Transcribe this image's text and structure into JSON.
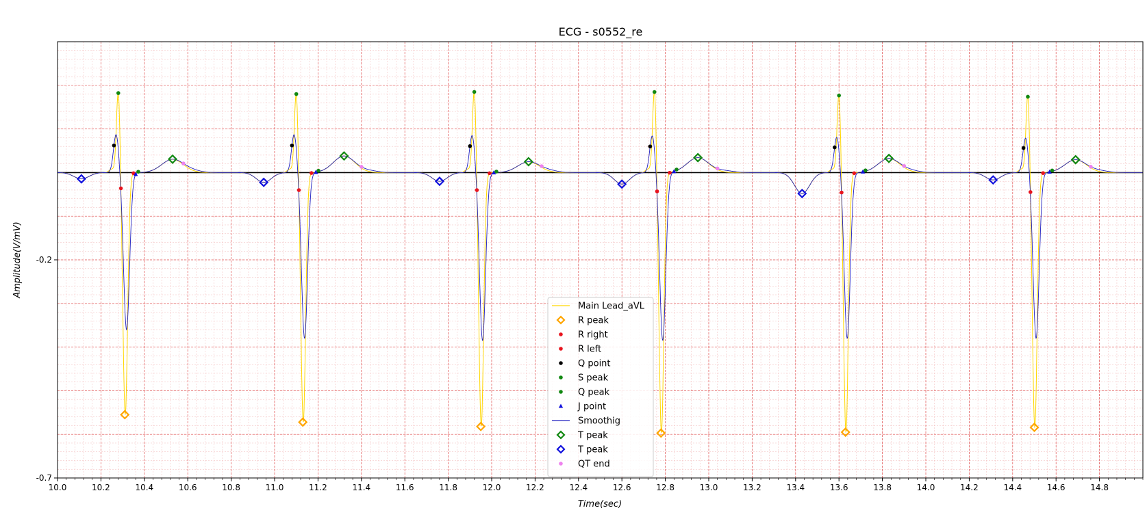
{
  "chart_data": {
    "type": "line",
    "title": "ECG - s0552_re",
    "xlabel": "Time(sec)",
    "ylabel": "Amplitude(V/mV)",
    "xlim": [
      10.0,
      15.0
    ],
    "ylim": [
      -0.7,
      0.3
    ],
    "xticks": [
      "10.0",
      "10.2",
      "10.4",
      "10.6",
      "10.8",
      "11.0",
      "11.2",
      "11.4",
      "11.6",
      "11.8",
      "12.0",
      "12.2",
      "12.4",
      "12.6",
      "12.8",
      "13.0",
      "13.2",
      "13.4",
      "13.6",
      "13.8",
      "14.0",
      "14.2",
      "14.4",
      "14.6",
      "14.8"
    ],
    "yticks": [
      "-0.2",
      "-0.7"
    ],
    "grid": true,
    "legend_position": "lower-center",
    "colors": {
      "main": "#ffd700",
      "smooth": "#1f1fbf",
      "red": "#e8141e",
      "black": "#000000",
      "green": "#118811",
      "blue": "#1111dd",
      "orange": "#ffa500",
      "violet": "#ee82ee",
      "major_grid": "#e05050",
      "minor_grid": "#f2b8b8"
    },
    "beats": [
      {
        "q": 10.26,
        "r": 10.28,
        "s": 10.31,
        "j": 10.36,
        "t": 10.53,
        "qt": 10.58,
        "tb": 10.11,
        "rmax": 0.19,
        "smin": -0.555,
        "sm": 0.088,
        "smm": -0.36,
        "tv": 0.032,
        "tbv": -0.018
      },
      {
        "q": 11.08,
        "r": 11.1,
        "s": 11.13,
        "j": 11.19,
        "t": 11.32,
        "qt": 11.4,
        "tb": 10.95,
        "rmax": 0.188,
        "smin": -0.572,
        "sm": 0.088,
        "smm": -0.38,
        "tv": 0.04,
        "tbv": -0.028
      },
      {
        "q": 11.9,
        "r": 11.92,
        "s": 11.95,
        "j": 12.01,
        "t": 12.17,
        "qt": 12.23,
        "tb": 11.76,
        "rmax": 0.193,
        "smin": -0.582,
        "sm": 0.086,
        "smm": -0.385,
        "tv": 0.026,
        "tbv": -0.025
      },
      {
        "q": 12.73,
        "r": 12.75,
        "s": 12.78,
        "j": 12.84,
        "t": 12.95,
        "qt": 13.04,
        "tb": 12.6,
        "rmax": 0.193,
        "smin": -0.597,
        "sm": 0.085,
        "smm": -0.385,
        "tv": 0.036,
        "tbv": -0.033
      },
      {
        "q": 13.58,
        "r": 13.6,
        "s": 13.63,
        "j": 13.71,
        "t": 13.83,
        "qt": 13.9,
        "tb": 13.43,
        "rmax": 0.185,
        "smin": -0.595,
        "sm": 0.082,
        "smm": -0.38,
        "tv": 0.034,
        "tbv": -0.06
      },
      {
        "q": 14.45,
        "r": 14.47,
        "s": 14.5,
        "j": 14.57,
        "t": 14.69,
        "qt": 14.76,
        "tb": 14.31,
        "rmax": 0.182,
        "smin": -0.584,
        "sm": 0.08,
        "smm": -0.38,
        "tv": 0.031,
        "tbv": -0.021
      }
    ],
    "legend": [
      {
        "label": "Main Lead_aVL",
        "kind": "line",
        "color": "#ffd700"
      },
      {
        "label": "R peak",
        "kind": "diamond",
        "color": "#ffa500"
      },
      {
        "label": "R right",
        "kind": "dot",
        "color": "#e8141e"
      },
      {
        "label": "R left",
        "kind": "dot",
        "color": "#e8141e"
      },
      {
        "label": "Q point",
        "kind": "dot",
        "color": "#000000"
      },
      {
        "label": "S peak",
        "kind": "dot",
        "color": "#118811"
      },
      {
        "label": "Q peak",
        "kind": "dot",
        "color": "#118811"
      },
      {
        "label": "J point",
        "kind": "triangle",
        "color": "#1111dd"
      },
      {
        "label": "Smoothig",
        "kind": "line",
        "color": "#1f1fbf"
      },
      {
        "label": "T peak",
        "kind": "diamond",
        "color": "#118811"
      },
      {
        "label": "T peak",
        "kind": "diamond",
        "color": "#1111dd"
      },
      {
        "label": "QT end",
        "kind": "dot",
        "color": "#ee82ee"
      }
    ]
  }
}
